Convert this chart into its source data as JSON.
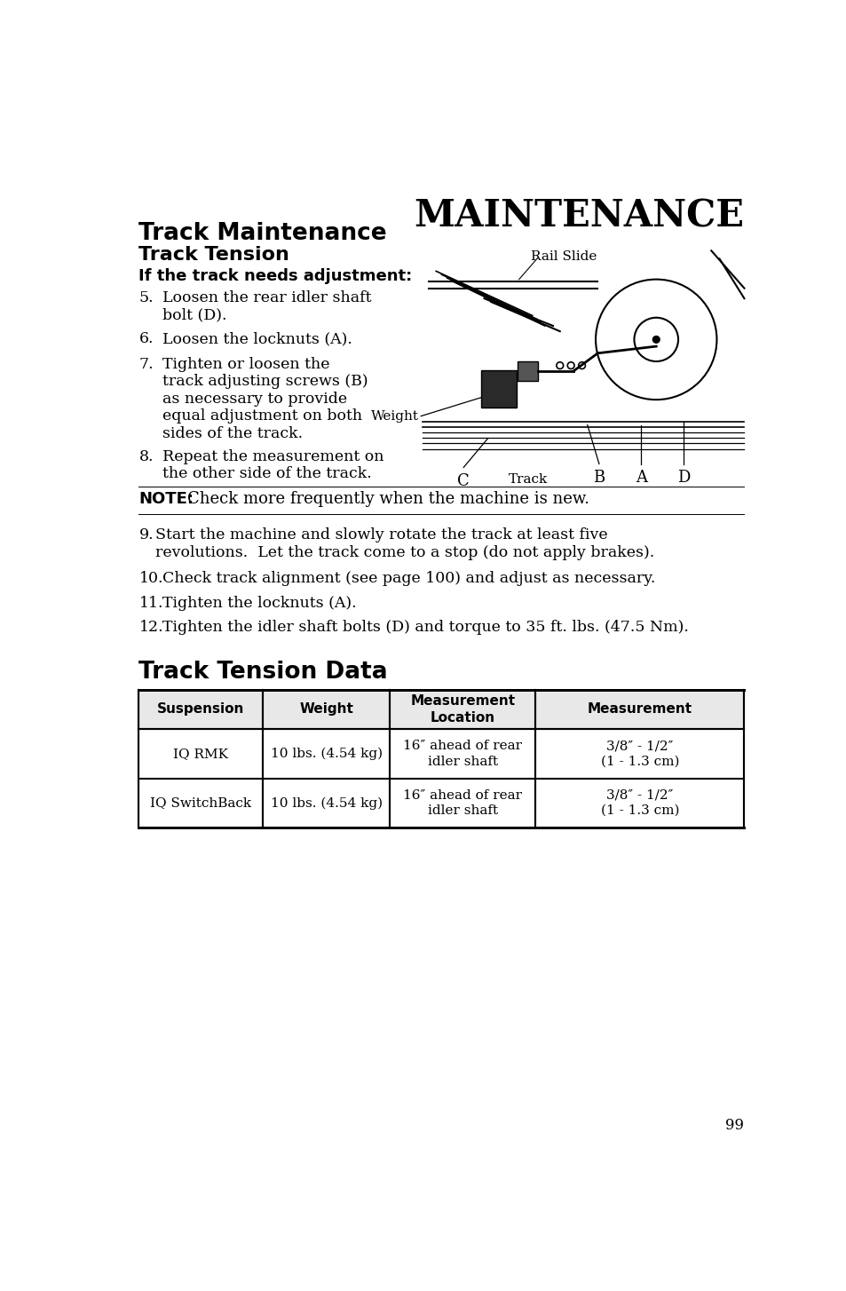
{
  "bg_color": "#ffffff",
  "header_title": "MAINTENANCE",
  "section_title": "Track Maintenance",
  "subsection_title": "Track Tension",
  "subsubsection_title": "If the track needs adjustment:",
  "steps_left": [
    {
      "num": "5.",
      "text": "Loosen the rear idler shaft\nbolt (D)."
    },
    {
      "num": "6.",
      "text": "Loosen the locknuts (A)."
    },
    {
      "num": "7.",
      "text": "Tighten or loosen the\ntrack adjusting screws (B)\nas necessary to provide\nequal adjustment on both\nsides of the track."
    },
    {
      "num": "8.",
      "text": "Repeat the measurement on\nthe other side of the track."
    }
  ],
  "note_label": "NOTE:",
  "note_text": "Check more frequently when the machine is new.",
  "steps_full": [
    {
      "num": "9.",
      "text": "Start the machine and slowly rotate the track at least five\nrevolutions.  Let the track come to a stop (do not apply brakes)."
    },
    {
      "num": "10.",
      "text": "Check track alignment (see page 100) and adjust as necessary."
    },
    {
      "num": "11.",
      "text": "Tighten the locknuts (A)."
    },
    {
      "num": "12.",
      "text": "Tighten the idler shaft bolts (D) and torque to 35 ft. lbs. (47.5 Nm)."
    }
  ],
  "table_title": "Track Tension Data",
  "table_headers": [
    "Suspension",
    "Weight",
    "Measurement\nLocation",
    "Measurement"
  ],
  "table_rows": [
    [
      "IQ RMK",
      "10 lbs. (4.54 kg)",
      "16″ ahead of rear\nidler shaft",
      "3/8″ - 1/2″\n(1 - 1.3 cm)"
    ],
    [
      "IQ SwitchBack",
      "10 lbs. (4.54 kg)",
      "16″ ahead of rear\nidler shaft",
      "3/8″ - 1/2″\n(1 - 1.3 cm)"
    ]
  ],
  "page_number": "99"
}
